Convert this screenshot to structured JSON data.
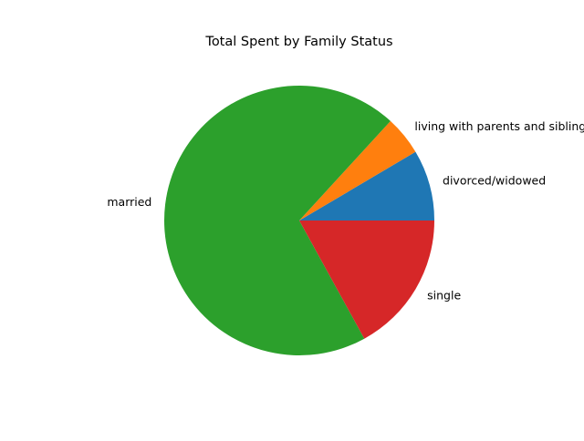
{
  "chart_data": {
    "type": "pie",
    "title": "Total Spent by Family Status",
    "categories": [
      "divorced/widowed",
      "living with parents and siblings",
      "married",
      "single"
    ],
    "values": [
      8.5,
      4.7,
      69.8,
      17.0
    ],
    "value_unit": "percent of total spent (estimated)",
    "colors": [
      "#1f77b4",
      "#ff7f0e",
      "#2ca02c",
      "#d62728"
    ],
    "start_angle_deg": 0,
    "direction": "counterclockwise",
    "legend": "none",
    "labels": "outside slices"
  }
}
